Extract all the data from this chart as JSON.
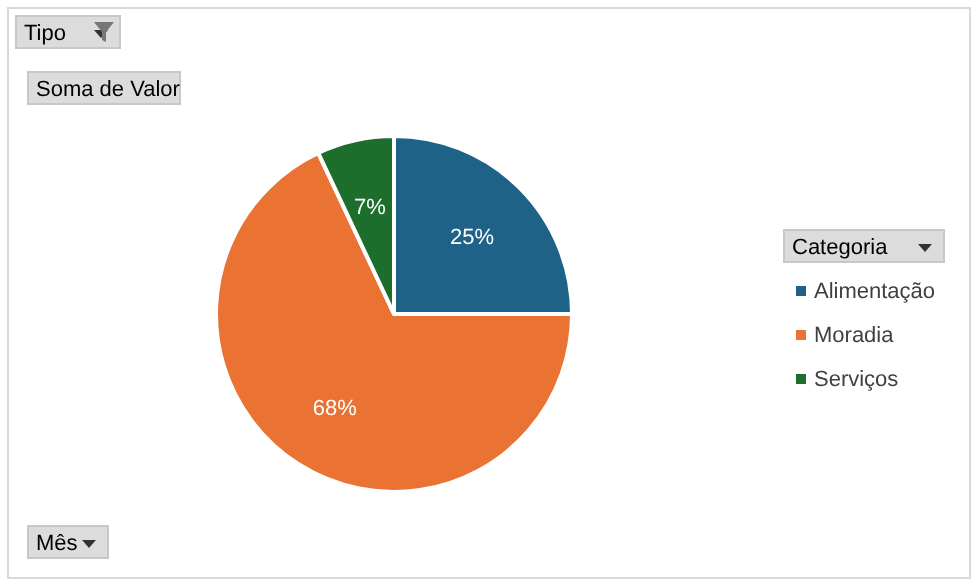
{
  "chart_data": {
    "type": "pie",
    "categories": [
      "Alimentação",
      "Moradia",
      "Serviços"
    ],
    "values": [
      25,
      68,
      7
    ],
    "colors": [
      "#1f6287",
      "#ea7333",
      "#1d6e2c"
    ],
    "value_labels": [
      "25%",
      "68%",
      "7%"
    ],
    "legend": "right",
    "legend_title": "Categoria",
    "annotations": [
      "Tipo",
      "Soma de Valor",
      "Mês"
    ]
  }
}
